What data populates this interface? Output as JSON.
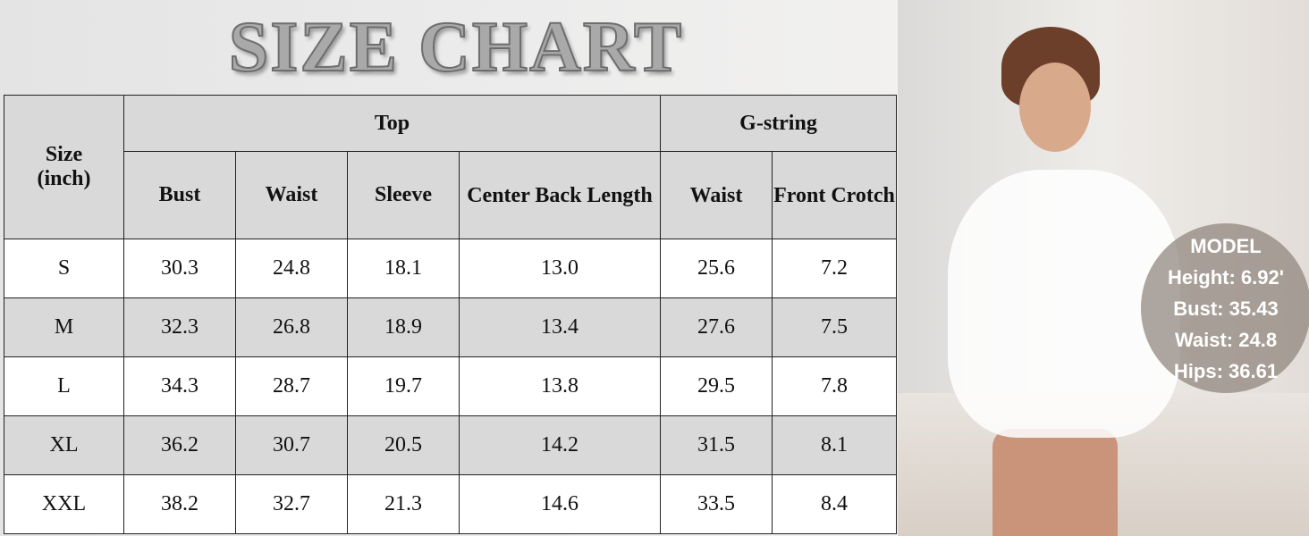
{
  "title": "SIZE CHART",
  "table": {
    "size_header": [
      "Size",
      "(inch)"
    ],
    "groups": [
      {
        "label": "Top"
      },
      {
        "label": "G-string"
      }
    ],
    "columns": [
      "Bust",
      "Waist",
      "Sleeve",
      "Center Back Length",
      "Waist",
      "Front Crotch"
    ],
    "rows": [
      [
        "S",
        "30.3",
        "24.8",
        "18.1",
        "13.0",
        "25.6",
        "7.2"
      ],
      [
        "M",
        "32.3",
        "26.8",
        "18.9",
        "13.4",
        "27.6",
        "7.5"
      ],
      [
        "L",
        "34.3",
        "28.7",
        "19.7",
        "13.8",
        "29.5",
        "7.8"
      ],
      [
        "XL",
        "36.2",
        "30.7",
        "20.5",
        "14.2",
        "31.5",
        "8.1"
      ],
      [
        "XXL",
        "38.2",
        "32.7",
        "21.3",
        "14.6",
        "33.5",
        "8.4"
      ]
    ]
  },
  "model": {
    "heading": "MODEL",
    "lines": [
      "Height: 6.92'",
      "Bust: 35.43",
      "Waist: 24.8",
      "Hips: 36.61"
    ]
  }
}
